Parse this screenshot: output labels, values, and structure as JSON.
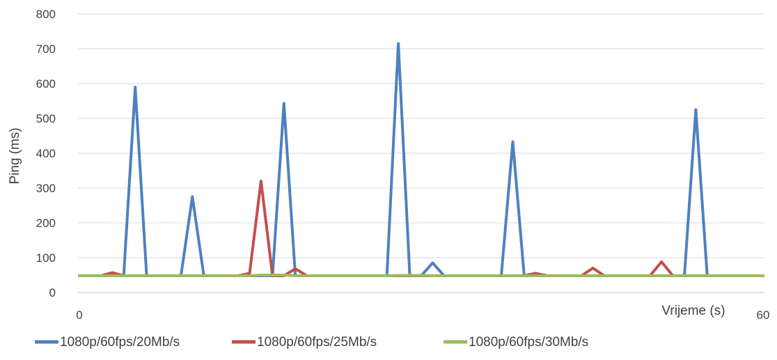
{
  "chart_data": {
    "type": "line",
    "title": "",
    "xlabel": "Vrijeme (s)",
    "ylabel": "Ping (ms)",
    "ylim": [
      0,
      800
    ],
    "yticks": [
      0,
      100,
      200,
      300,
      400,
      500,
      600,
      700,
      800
    ],
    "xlim": [
      0,
      60
    ],
    "xtick_labels": [
      "0",
      "60"
    ],
    "grid": "horizontal",
    "legend": "bottom",
    "x": [
      0,
      1,
      2,
      3,
      4,
      5,
      6,
      7,
      8,
      9,
      10,
      11,
      12,
      13,
      14,
      15,
      16,
      17,
      18,
      19,
      20,
      21,
      22,
      23,
      24,
      25,
      26,
      27,
      28,
      29,
      30,
      31,
      32,
      33,
      34,
      35,
      36,
      37,
      38,
      39,
      40,
      41,
      42,
      43,
      44,
      45,
      46,
      47,
      48,
      49,
      50,
      51,
      52,
      53,
      54,
      55,
      56,
      57,
      58,
      59,
      60
    ],
    "series": [
      {
        "name": "1080p/60fps/20Mb/s",
        "color": "#4f81bd",
        "values": [
          48,
          48,
          48,
          48,
          48,
          590,
          48,
          48,
          48,
          48,
          275,
          48,
          48,
          48,
          48,
          48,
          48,
          48,
          543,
          48,
          48,
          48,
          48,
          48,
          48,
          48,
          48,
          48,
          715,
          48,
          48,
          85,
          48,
          48,
          48,
          48,
          48,
          48,
          433,
          48,
          48,
          48,
          48,
          48,
          48,
          48,
          48,
          48,
          48,
          48,
          48,
          48,
          48,
          48,
          525,
          48,
          48,
          48,
          48,
          48,
          48
        ]
      },
      {
        "name": "1080p/60fps/25Mb/s",
        "color": "#c0504d",
        "values": [
          48,
          48,
          48,
          57,
          48,
          48,
          48,
          48,
          48,
          48,
          48,
          48,
          48,
          48,
          48,
          55,
          320,
          48,
          48,
          68,
          48,
          48,
          48,
          48,
          48,
          48,
          48,
          48,
          48,
          48,
          48,
          48,
          48,
          48,
          48,
          48,
          48,
          48,
          48,
          48,
          55,
          48,
          48,
          48,
          48,
          70,
          48,
          48,
          48,
          48,
          48,
          88,
          48,
          48,
          48,
          48,
          48,
          48,
          48,
          48,
          48
        ]
      },
      {
        "name": "1080p/60fps/30Mb/s",
        "color": "#9bbb59",
        "values": [
          48,
          48,
          48,
          48,
          48,
          48,
          48,
          48,
          48,
          48,
          48,
          48,
          48,
          48,
          48,
          48,
          50,
          50,
          50,
          48,
          48,
          48,
          48,
          48,
          48,
          48,
          48,
          48,
          49,
          49,
          49,
          48,
          48,
          48,
          48,
          48,
          48,
          48,
          48,
          48,
          48,
          48,
          48,
          48,
          48,
          48,
          48,
          48,
          48,
          48,
          48,
          48,
          48,
          48,
          48,
          48,
          48,
          48,
          48,
          48,
          48
        ]
      }
    ]
  }
}
